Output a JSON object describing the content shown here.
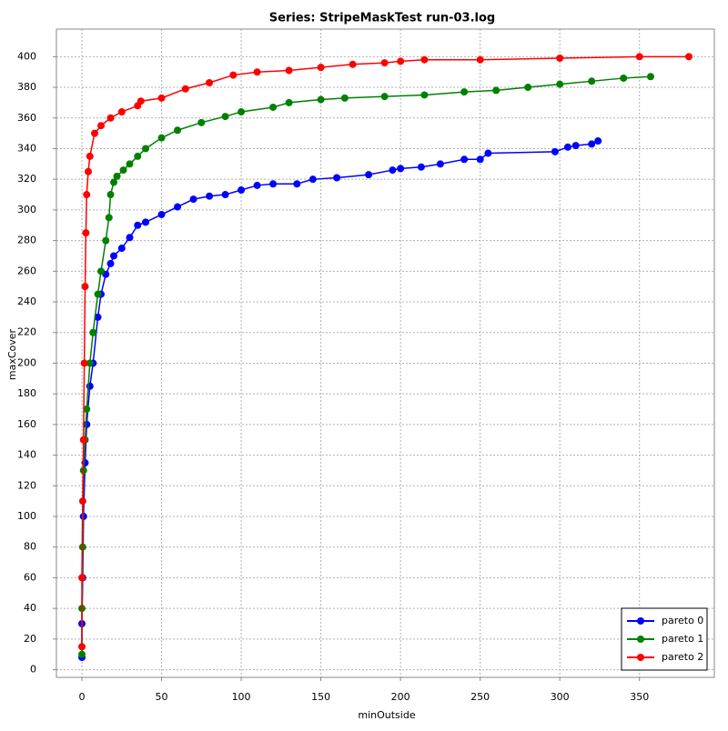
{
  "chart_data": {
    "type": "line",
    "title": "Series: StripeMaskTest run-03.log",
    "x_label": "minOutside",
    "y_label": "maxCover",
    "xlim": [
      -16,
      397
    ],
    "ylim": [
      -5,
      418
    ],
    "xticks": [
      0,
      50,
      100,
      150,
      200,
      250,
      300,
      350
    ],
    "yticks": [
      0,
      20,
      40,
      60,
      80,
      100,
      120,
      140,
      160,
      180,
      200,
      220,
      240,
      260,
      280,
      300,
      320,
      340,
      360,
      380,
      400
    ],
    "grid": true,
    "legend": "lower right",
    "series": [
      {
        "name": "pareto 0",
        "color": "#0000ff",
        "x": [
          0,
          0,
          0.5,
          1,
          2,
          3,
          5,
          7,
          10,
          12,
          15,
          18,
          20,
          25,
          30,
          35,
          40,
          50,
          60,
          70,
          80,
          90,
          100,
          110,
          120,
          135,
          145,
          160,
          180,
          195,
          200,
          213,
          225,
          240,
          250,
          255,
          297,
          305,
          310,
          320,
          324
        ],
        "values": [
          8,
          30,
          60,
          100,
          135,
          160,
          185,
          200,
          230,
          245,
          258,
          265,
          270,
          275,
          282,
          290,
          292,
          297,
          302,
          307,
          309,
          310,
          313,
          316,
          317,
          317,
          320,
          321,
          323,
          326,
          327,
          328,
          330,
          333,
          333,
          337,
          338,
          341,
          342,
          343,
          345
        ]
      },
      {
        "name": "pareto 1",
        "color": "#008000",
        "x": [
          0,
          0,
          0.5,
          1,
          2,
          3,
          5,
          7,
          10,
          12,
          15,
          17,
          18,
          20,
          22,
          26,
          30,
          35,
          40,
          50,
          60,
          75,
          90,
          100,
          120,
          130,
          150,
          165,
          190,
          215,
          240,
          260,
          280,
          300,
          320,
          340,
          357
        ],
        "values": [
          10,
          40,
          80,
          130,
          150,
          170,
          200,
          220,
          245,
          260,
          280,
          295,
          310,
          318,
          322,
          326,
          330,
          335,
          340,
          347,
          352,
          357,
          361,
          364,
          367,
          370,
          372,
          373,
          374,
          375,
          377,
          378,
          380,
          382,
          384,
          386,
          387
        ]
      },
      {
        "name": "pareto 2",
        "color": "#ff0000",
        "x": [
          0,
          0,
          0.5,
          1,
          1.5,
          2,
          2.5,
          3,
          4,
          5,
          8,
          12,
          18,
          25,
          35,
          37,
          50,
          65,
          80,
          95,
          110,
          130,
          150,
          170,
          190,
          200,
          215,
          250,
          300,
          350,
          381
        ],
        "values": [
          15,
          60,
          110,
          150,
          200,
          250,
          285,
          310,
          325,
          335,
          350,
          355,
          360,
          364,
          368,
          371,
          373,
          379,
          383,
          388,
          390,
          391,
          393,
          395,
          396,
          397,
          398,
          398,
          399,
          400,
          400
        ]
      }
    ]
  }
}
